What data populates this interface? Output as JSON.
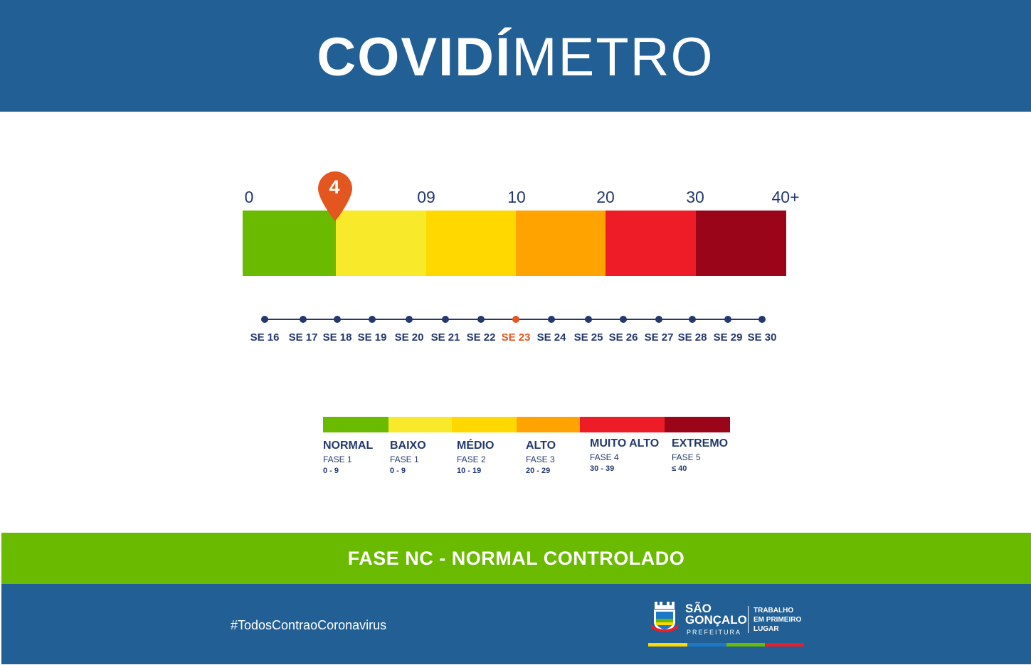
{
  "header": {
    "title_bold": "COVIDÍ",
    "title_light": "METRO",
    "bg_color": "#215f95"
  },
  "scale": {
    "ticks": [
      "0",
      "09",
      "10",
      "20",
      "30",
      "40+"
    ],
    "colors": [
      "#6aba00",
      "#f8ea2a",
      "#ffd800",
      "#fea300",
      "#ee1c27",
      "#9b0519"
    ],
    "marker_value": "4",
    "marker_color": "#e3561f"
  },
  "timeline": {
    "labels": [
      "SE 16",
      "SE 17",
      "SE 18",
      "SE 19",
      "SE 20",
      "SE 21",
      "SE 22",
      "SE 23",
      "SE 24",
      "SE 25",
      "SE 26",
      "SE 27",
      "SE 28",
      "SE 29",
      "SE 30"
    ],
    "active": "SE 23"
  },
  "legend": {
    "items": [
      {
        "name": "NORMAL",
        "phase": "FASE 1",
        "range": "0 - 9",
        "color": "#6aba00"
      },
      {
        "name": "BAIXO",
        "phase": "FASE 1",
        "range": "0 - 9",
        "color": "#f8ea2a"
      },
      {
        "name": "MÉDIO",
        "phase": "FASE 2",
        "range": "10 - 19",
        "color": "#ffd800"
      },
      {
        "name": "ALTO",
        "phase": "FASE 3",
        "range": "20 - 29",
        "color": "#fea300"
      },
      {
        "name": "MUITO ALTO",
        "phase": "FASE 4",
        "range": "30 - 39",
        "color": "#ee1c27"
      },
      {
        "name": "EXTREMO",
        "phase": "FASE 5",
        "range": "≤ 40",
        "color": "#9b0519"
      }
    ]
  },
  "status": {
    "text": "FASE NC - NORMAL CONTROLADO",
    "color": "#6aba00"
  },
  "footer": {
    "hashtag": "#TodosContraoCoronavirus",
    "logo_name_line1": "SÃO",
    "logo_name_line2": "GONÇALO",
    "logo_sub": "PREFEITURA",
    "slogan_line1": "TRABALHO",
    "slogan_line2": "EM PRIMEIRO",
    "slogan_line3": "LUGAR",
    "stripe_colors": [
      "#ffd800",
      "#1e78c8",
      "#6aba00",
      "#ee1c27"
    ]
  }
}
